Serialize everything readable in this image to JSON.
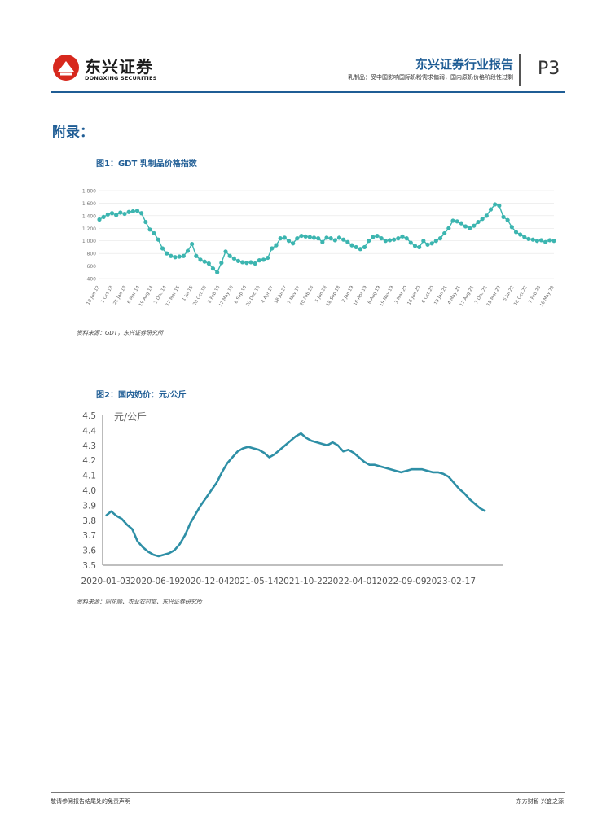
{
  "header": {
    "brand_cn": "东兴证券",
    "brand_en": "DONGXING SECURITIES",
    "report_type": "东兴证券行业报告",
    "subtitle": "乳制品：受中国影响国际奶粉需求偏弱，国内原奶价格阶段性过剩",
    "page_number": "P3",
    "brand_color": "#d7281d",
    "accent_color": "#1f5d95"
  },
  "appendix_title": "附录：",
  "figure1": {
    "title": "图1：GDT  乳制品价格指数",
    "source": "资料来源：GDT，东兴证券研究所"
  },
  "figure2": {
    "title": "图2：国内奶价：元/公斤",
    "source": "资料来源：同花顺、农业农村部、东兴证券研究所"
  },
  "footer": {
    "left": "敬请参阅报告结尾处的免责声明",
    "right": "东方财智  兴盛之源"
  },
  "chart_data": [
    {
      "type": "line",
      "title": "图1：GDT  乳制品价格指数",
      "xlabel": "",
      "ylabel": "",
      "ylim": [
        400,
        1800
      ],
      "yticks": [
        "1,800",
        "1,600",
        "1,400",
        "1,200",
        "1,000",
        "800",
        "600",
        "400"
      ],
      "x_tick_labels": [
        "18 Jun 12",
        "1 Oct 13",
        "21 Jan 13",
        "6 Mar 14",
        "19 Aug 14",
        "2 Dec 14",
        "17 Mar 15",
        "1 Jul 15",
        "20 Oct 15",
        "2 Feb 16",
        "17 May 16",
        "6 Sep 16",
        "20 Dec 16",
        "4 Apr 17",
        "18 Jul 17",
        "7 Nov 17",
        "20 Feb 18",
        "5 Jun 18",
        "18 Sep 18",
        "2 Jan 19",
        "16 Apr 19",
        "6 Aug 19",
        "19 Nov 19",
        "3 Mar 20",
        "16 Jun 20",
        "6 Oct 20",
        "19 Jan 21",
        "4 May 21",
        "17 Aug 21",
        "7 Dec 21",
        "15 Mar 22",
        "5 Jul 22",
        "18 Oct 22",
        "7 Feb 23",
        "16 May 23"
      ],
      "series": [
        {
          "name": "GDT乳制品价格指数",
          "color": "#3cb5b0",
          "values": [
            1340,
            1380,
            1420,
            1440,
            1410,
            1450,
            1430,
            1460,
            1470,
            1480,
            1440,
            1300,
            1180,
            1120,
            1020,
            880,
            800,
            760,
            740,
            750,
            760,
            840,
            950,
            760,
            700,
            670,
            640,
            560,
            500,
            650,
            830,
            760,
            720,
            680,
            660,
            650,
            660,
            640,
            690,
            700,
            730,
            880,
            930,
            1040,
            1050,
            1000,
            960,
            1040,
            1080,
            1070,
            1060,
            1050,
            1040,
            980,
            1050,
            1040,
            1010,
            1050,
            1020,
            980,
            930,
            900,
            870,
            900,
            1000,
            1060,
            1080,
            1040,
            1000,
            1010,
            1020,
            1040,
            1070,
            1040,
            970,
            920,
            900,
            1000,
            940,
            960,
            1000,
            1040,
            1120,
            1200,
            1320,
            1310,
            1280,
            1230,
            1200,
            1240,
            1300,
            1350,
            1400,
            1500,
            1580,
            1560,
            1380,
            1330,
            1220,
            1140,
            1100,
            1060,
            1030,
            1020,
            1000,
            1010,
            980,
            1010,
            1000
          ]
        }
      ]
    },
    {
      "type": "line",
      "title": "图2：国内奶价：元/公斤",
      "unit_label": "元/公斤",
      "xlabel": "",
      "ylabel": "",
      "ylim": [
        3.5,
        4.5
      ],
      "yticks": [
        "4.5",
        "4.4",
        "4.3",
        "4.2",
        "4.1",
        "4.0",
        "3.9",
        "3.8",
        "3.7",
        "3.6",
        "3.5"
      ],
      "x_tick_labels": [
        "2020-01-03",
        "2020-06-19",
        "2020-12-04",
        "2021-05-14",
        "2021-10-22",
        "2022-04-01",
        "2022-09-09",
        "2023-02-17"
      ],
      "series": [
        {
          "name": "国内奶价",
          "color": "#2e8fa6",
          "values": [
            3.83,
            3.86,
            3.83,
            3.81,
            3.77,
            3.74,
            3.66,
            3.62,
            3.59,
            3.57,
            3.56,
            3.57,
            3.58,
            3.6,
            3.64,
            3.7,
            3.78,
            3.84,
            3.9,
            3.95,
            4.0,
            4.05,
            4.12,
            4.18,
            4.22,
            4.26,
            4.28,
            4.29,
            4.28,
            4.27,
            4.25,
            4.22,
            4.24,
            4.27,
            4.3,
            4.33,
            4.36,
            4.38,
            4.35,
            4.33,
            4.32,
            4.31,
            4.3,
            4.32,
            4.3,
            4.26,
            4.27,
            4.25,
            4.22,
            4.19,
            4.17,
            4.17,
            4.16,
            4.15,
            4.14,
            4.13,
            4.12,
            4.13,
            4.14,
            4.14,
            4.14,
            4.13,
            4.12,
            4.12,
            4.11,
            4.09,
            4.05,
            4.01,
            3.98,
            3.94,
            3.91,
            3.88,
            3.86
          ]
        }
      ]
    }
  ]
}
